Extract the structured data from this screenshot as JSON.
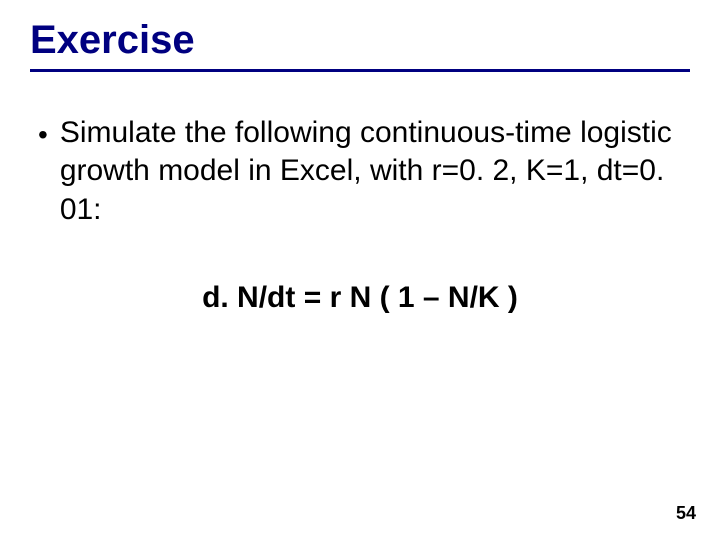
{
  "slide": {
    "title": "Exercise",
    "bullet_text": "Simulate the following continuous-time logistic growth model in Excel, with r=0. 2, K=1, dt=0. 01:",
    "equation": "d. N/dt = r N ( 1 – N/K )",
    "page_number": "54"
  },
  "style": {
    "title_color": "#000080",
    "title_fontsize": 40,
    "body_fontsize": 30,
    "equation_fontsize": 30,
    "background_color": "#ffffff",
    "text_color": "#000000",
    "underline_color": "#000080",
    "underline_width": 3,
    "page_number_fontsize": 18
  }
}
